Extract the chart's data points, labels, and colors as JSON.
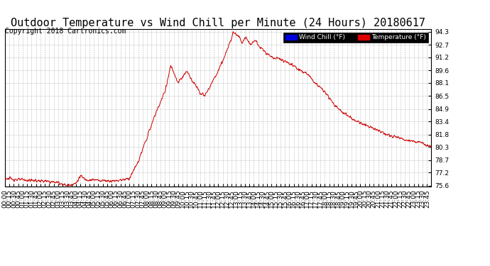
{
  "title": "Outdoor Temperature vs Wind Chill per Minute (24 Hours) 20180617",
  "copyright": "Copyright 2018 Cartronics.com",
  "ylabel_right_ticks": [
    75.6,
    77.2,
    78.7,
    80.3,
    81.8,
    83.4,
    84.9,
    86.5,
    88.1,
    89.6,
    91.2,
    92.7,
    94.3
  ],
  "ymin": 75.6,
  "ymax": 94.3,
  "legend_wind_chill": "Wind Chill (°F)",
  "legend_temperature": "Temperature (°F)",
  "legend_wc_bg": "#0000dd",
  "legend_temp_bg": "#dd0000",
  "line_color": "#cc0000",
  "bg_color": "#ffffff",
  "plot_bg_color": "#ffffff",
  "grid_color": "#aaaaaa",
  "title_fontsize": 11,
  "copyright_fontsize": 7,
  "tick_fontsize": 6.5,
  "xtick_interval_minutes": 15
}
